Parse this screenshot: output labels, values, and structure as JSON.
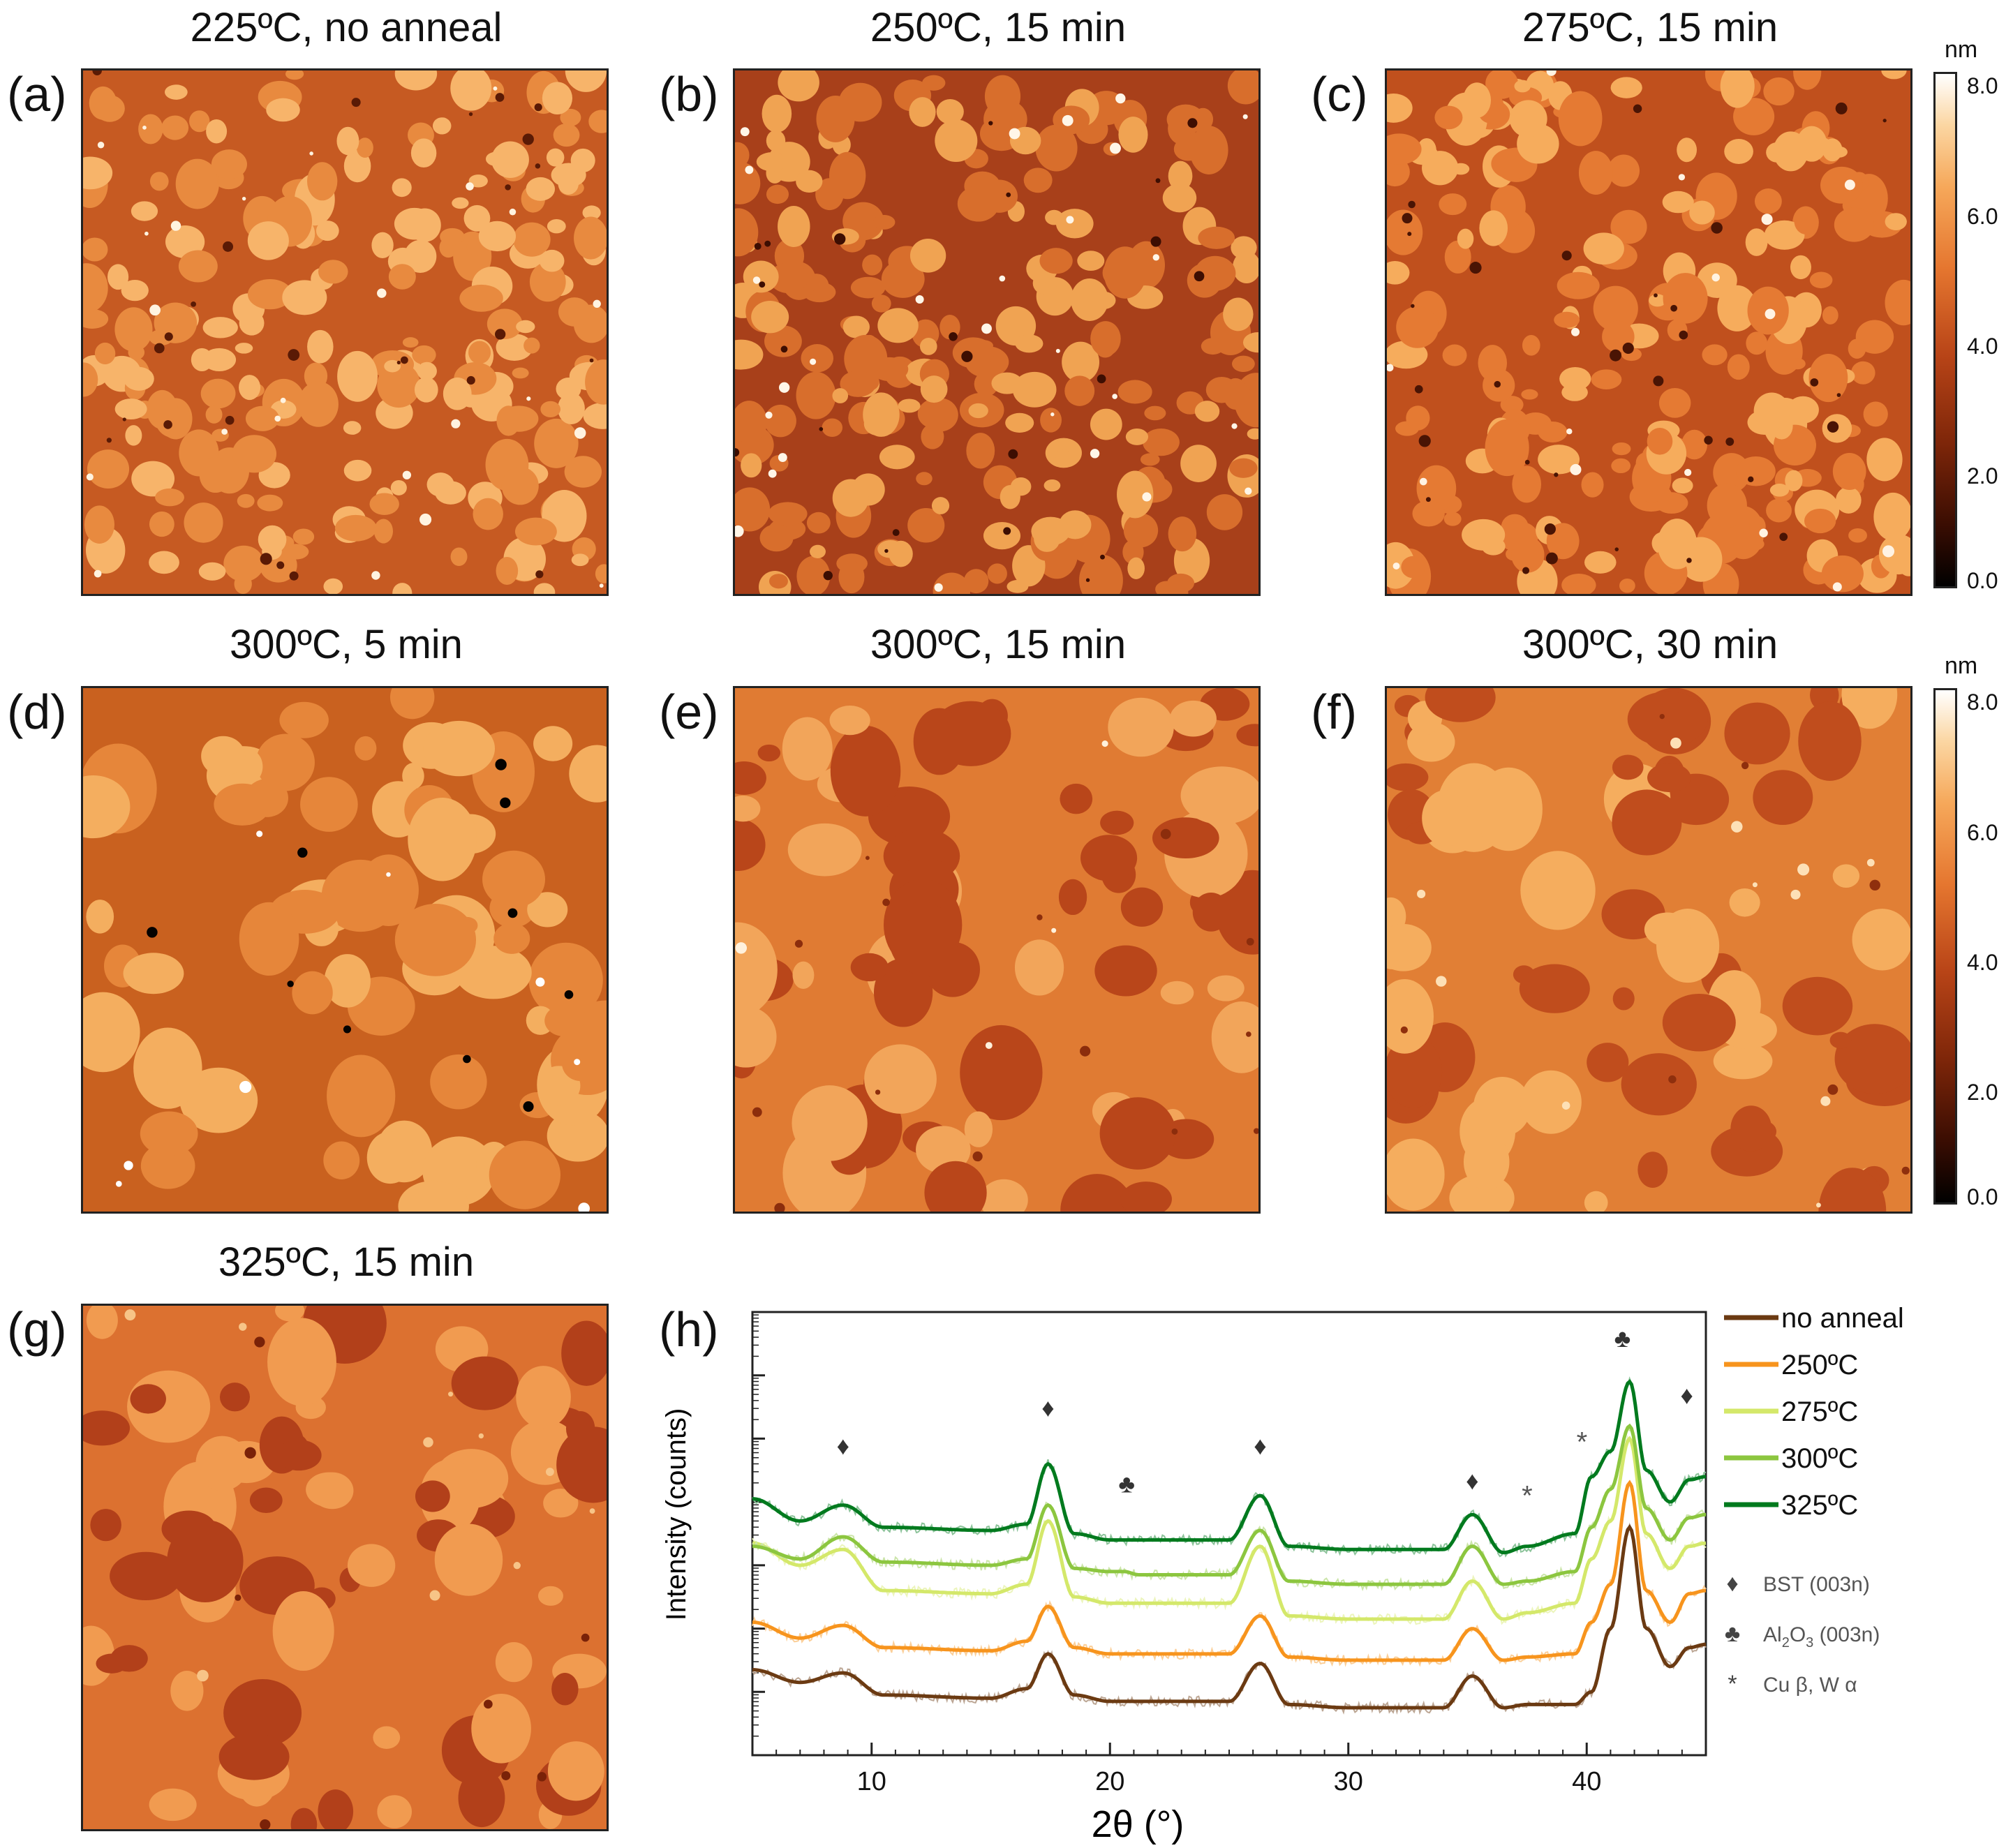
{
  "panels": [
    {
      "letter": "(a)",
      "title": "225ºC, no anneal"
    },
    {
      "letter": "(b)",
      "title": "250ºC, 15 min"
    },
    {
      "letter": "(c)",
      "title": "275ºC, 15 min"
    },
    {
      "letter": "(d)",
      "title": "300ºC, 5 min"
    },
    {
      "letter": "(e)",
      "title": "300ºC, 15 min"
    },
    {
      "letter": "(f)",
      "title": "300ºC, 30 min"
    },
    {
      "letter": "(g)",
      "title": "325ºC, 15 min"
    },
    {
      "letter": "(h)",
      "title": ""
    }
  ],
  "colorbar": {
    "unit": "nm",
    "ticks": [
      "8.0",
      "6.0",
      "4.0",
      "2.0",
      "0.0"
    ],
    "colors": [
      "#000000",
      "#7e2609",
      "#e5762f",
      "#fbd6a2",
      "#ffffff"
    ]
  },
  "chart_data": {
    "type": "line",
    "title": "",
    "xlabel": "2θ (°)",
    "ylabel": "Intensity (counts)",
    "xlim": [
      5,
      45
    ],
    "y_scale": "log",
    "x_ticks": [
      "10",
      "20",
      "30",
      "40"
    ],
    "series": [
      {
        "name": "no anneal",
        "color": "#6b3a12",
        "x": [
          5,
          7,
          8.8,
          10.5,
          15,
          16.5,
          17.4,
          18.5,
          20,
          25,
          26.3,
          27.5,
          30,
          34,
          35.2,
          36.5,
          37.5,
          39.5,
          40.2,
          41,
          41.8,
          42.5,
          43.5,
          44.3,
          45
        ],
        "y": [
          2.35,
          2.15,
          2.3,
          1.95,
          1.9,
          2.05,
          2.6,
          1.95,
          1.85,
          1.85,
          2.45,
          1.8,
          1.75,
          1.75,
          2.25,
          1.75,
          1.8,
          1.8,
          2.0,
          3.0,
          4.6,
          3.0,
          2.4,
          2.7,
          2.75
        ]
      },
      {
        "name": "250ºC",
        "color": "#f7941d",
        "x": [
          5,
          7,
          8.8,
          10.5,
          15,
          16.5,
          17.4,
          18.5,
          20,
          25,
          26.3,
          27.5,
          30,
          34,
          35.2,
          36.5,
          37.5,
          39.5,
          40.2,
          41,
          41.8,
          42.5,
          43.5,
          44.3,
          45
        ],
        "y": [
          3.1,
          2.85,
          3.05,
          2.7,
          2.65,
          2.8,
          3.35,
          2.7,
          2.6,
          2.6,
          3.2,
          2.55,
          2.5,
          2.5,
          3.0,
          2.5,
          2.55,
          2.6,
          3.1,
          3.7,
          5.3,
          3.6,
          3.1,
          3.55,
          3.6
        ]
      },
      {
        "name": "275ºC",
        "color": "#d4e86a",
        "x": [
          5,
          7,
          8.8,
          10.5,
          15,
          16.5,
          17.4,
          18.5,
          20,
          25,
          26.3,
          27.5,
          30,
          34,
          35.2,
          36.5,
          37.5,
          39.5,
          40.2,
          41,
          41.8,
          42.5,
          43.5,
          44.3,
          45
        ],
        "y": [
          4.35,
          4.0,
          4.25,
          3.6,
          3.55,
          3.7,
          4.7,
          3.5,
          3.4,
          3.4,
          4.3,
          3.2,
          3.15,
          3.15,
          3.75,
          3.15,
          3.25,
          3.4,
          4.1,
          4.7,
          6.0,
          4.5,
          3.95,
          4.3,
          4.35
        ]
      },
      {
        "name": "300ºC",
        "color": "#8cc63f",
        "x": [
          5,
          7,
          8.8,
          10.5,
          15,
          16.5,
          17.4,
          18.5,
          20,
          20.6,
          21.2,
          25,
          26.3,
          27.5,
          30,
          34,
          35.2,
          36.5,
          37.5,
          39.5,
          40.2,
          41,
          41.8,
          42.5,
          43.5,
          44.3,
          45
        ],
        "y": [
          4.3,
          4.1,
          4.45,
          4.05,
          4.0,
          4.1,
          4.95,
          3.95,
          3.9,
          3.9,
          3.85,
          3.85,
          4.55,
          3.75,
          3.7,
          3.7,
          4.3,
          3.7,
          3.75,
          3.9,
          4.6,
          5.2,
          6.2,
          4.9,
          4.4,
          4.75,
          4.8
        ]
      },
      {
        "name": "325ºC",
        "color": "#007a1e",
        "x": [
          5,
          7,
          8.8,
          10.5,
          15,
          16.5,
          17.4,
          18.5,
          20,
          25,
          26.3,
          27.5,
          30,
          34,
          35.2,
          36.5,
          37.5,
          39.5,
          40.2,
          41,
          41.8,
          42.5,
          43.5,
          44.3,
          45
        ],
        "y": [
          5.05,
          4.7,
          4.95,
          4.6,
          4.55,
          4.65,
          5.6,
          4.5,
          4.4,
          4.4,
          5.1,
          4.3,
          4.25,
          4.25,
          4.8,
          4.2,
          4.3,
          4.5,
          5.4,
          5.8,
          6.9,
          5.5,
          5.0,
          5.35,
          5.4
        ]
      }
    ],
    "annotations": [
      {
        "symbol": "♦",
        "x": 8.8,
        "y": 5.75
      },
      {
        "symbol": "♦",
        "x": 17.4,
        "y": 6.35
      },
      {
        "symbol": "♣",
        "x": 20.7,
        "y": 5.15
      },
      {
        "symbol": "♦",
        "x": 26.3,
        "y": 5.75
      },
      {
        "symbol": "♦",
        "x": 35.2,
        "y": 5.2
      },
      {
        "symbol": "*",
        "x": 37.5,
        "y": 4.95
      },
      {
        "symbol": "*",
        "x": 39.8,
        "y": 5.8
      },
      {
        "symbol": "♣",
        "x": 41.5,
        "y": 7.45
      },
      {
        "symbol": "♦",
        "x": 44.2,
        "y": 6.55
      }
    ],
    "legend": {
      "placement": "right",
      "entries": [
        "no anneal",
        "250ºC",
        "275ºC",
        "300ºC",
        "325ºC"
      ],
      "markers": [
        {
          "symbol": "♦",
          "label": "BST (003n)"
        },
        {
          "symbol": "♣",
          "label": "Al",
          "sub": "2",
          "label2": "O",
          "sub2": "3",
          "label3": " (003n)"
        },
        {
          "symbol": "*",
          "label": "Cu β, W α"
        }
      ]
    }
  }
}
